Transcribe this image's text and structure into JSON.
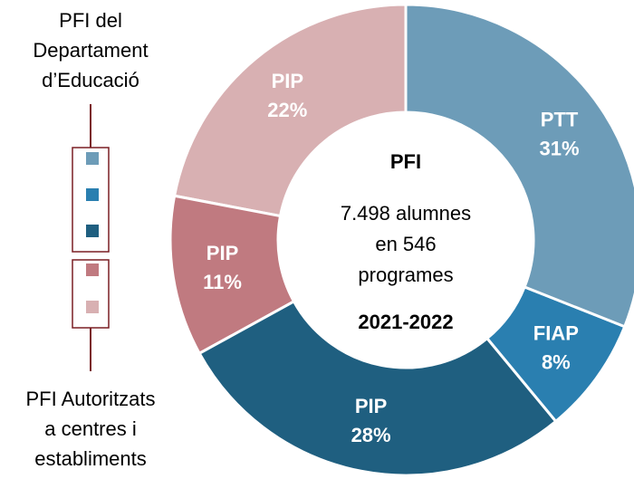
{
  "chart_data": {
    "type": "donut",
    "title": "PFI",
    "center_lines": [
      "7.498 alumnes",
      "en 546",
      "programes"
    ],
    "subtitle": "2021-2022",
    "categories": [
      "PTT",
      "FIAP",
      "PIP",
      "PIP",
      "PIP"
    ],
    "values": [
      31,
      8,
      28,
      11,
      22
    ],
    "value_labels": [
      "31%",
      "8%",
      "28%",
      "11%",
      "22%"
    ],
    "colors": [
      "#6d9cb8",
      "#2a7fb0",
      "#1f5f80",
      "#c07a80",
      "#d8b0b2"
    ],
    "legend_groups": [
      {
        "lines": [
          "PFI del",
          "Departament",
          "d’Educació"
        ],
        "colors": [
          "#6d9cb8",
          "#2a7fb0",
          "#1f5f80"
        ]
      },
      {
        "lines": [
          "PFI Autoritzats",
          "a centres i",
          "establiments"
        ],
        "colors": [
          "#c07a80",
          "#d8b0b2"
        ]
      }
    ]
  }
}
